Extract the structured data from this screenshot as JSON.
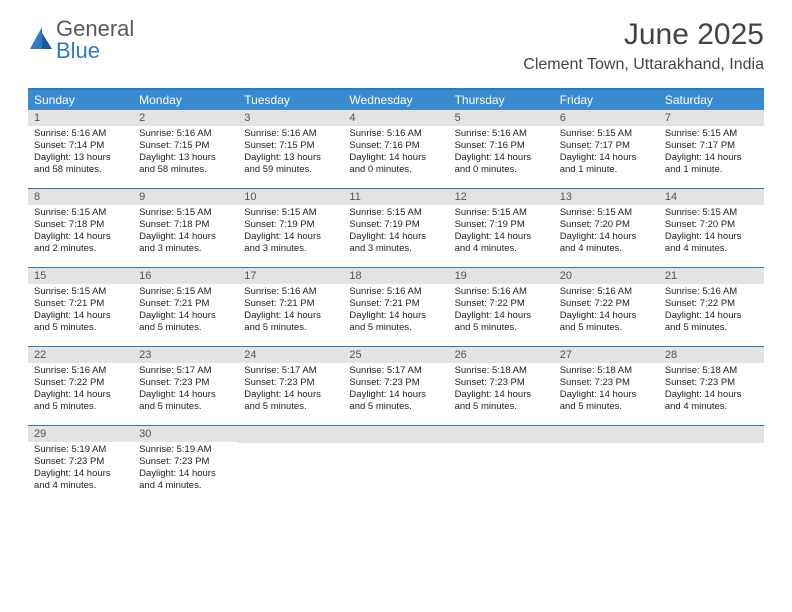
{
  "brand": {
    "part1": "General",
    "part2": "Blue"
  },
  "title": "June 2025",
  "location": "Clement Town, Uttarakhand, India",
  "colors": {
    "header_bg": "#3a8ad0",
    "border": "#2f79c2",
    "daynum_bg": "#e3e3e3",
    "text": "#222222"
  },
  "day_names": [
    "Sunday",
    "Monday",
    "Tuesday",
    "Wednesday",
    "Thursday",
    "Friday",
    "Saturday"
  ],
  "weeks": [
    [
      {
        "n": "1",
        "sr": "5:16 AM",
        "ss": "7:14 PM",
        "dl": "13 hours and 58 minutes."
      },
      {
        "n": "2",
        "sr": "5:16 AM",
        "ss": "7:15 PM",
        "dl": "13 hours and 58 minutes."
      },
      {
        "n": "3",
        "sr": "5:16 AM",
        "ss": "7:15 PM",
        "dl": "13 hours and 59 minutes."
      },
      {
        "n": "4",
        "sr": "5:16 AM",
        "ss": "7:16 PM",
        "dl": "14 hours and 0 minutes."
      },
      {
        "n": "5",
        "sr": "5:16 AM",
        "ss": "7:16 PM",
        "dl": "14 hours and 0 minutes."
      },
      {
        "n": "6",
        "sr": "5:15 AM",
        "ss": "7:17 PM",
        "dl": "14 hours and 1 minute."
      },
      {
        "n": "7",
        "sr": "5:15 AM",
        "ss": "7:17 PM",
        "dl": "14 hours and 1 minute."
      }
    ],
    [
      {
        "n": "8",
        "sr": "5:15 AM",
        "ss": "7:18 PM",
        "dl": "14 hours and 2 minutes."
      },
      {
        "n": "9",
        "sr": "5:15 AM",
        "ss": "7:18 PM",
        "dl": "14 hours and 3 minutes."
      },
      {
        "n": "10",
        "sr": "5:15 AM",
        "ss": "7:19 PM",
        "dl": "14 hours and 3 minutes."
      },
      {
        "n": "11",
        "sr": "5:15 AM",
        "ss": "7:19 PM",
        "dl": "14 hours and 3 minutes."
      },
      {
        "n": "12",
        "sr": "5:15 AM",
        "ss": "7:19 PM",
        "dl": "14 hours and 4 minutes."
      },
      {
        "n": "13",
        "sr": "5:15 AM",
        "ss": "7:20 PM",
        "dl": "14 hours and 4 minutes."
      },
      {
        "n": "14",
        "sr": "5:15 AM",
        "ss": "7:20 PM",
        "dl": "14 hours and 4 minutes."
      }
    ],
    [
      {
        "n": "15",
        "sr": "5:15 AM",
        "ss": "7:21 PM",
        "dl": "14 hours and 5 minutes."
      },
      {
        "n": "16",
        "sr": "5:15 AM",
        "ss": "7:21 PM",
        "dl": "14 hours and 5 minutes."
      },
      {
        "n": "17",
        "sr": "5:16 AM",
        "ss": "7:21 PM",
        "dl": "14 hours and 5 minutes."
      },
      {
        "n": "18",
        "sr": "5:16 AM",
        "ss": "7:21 PM",
        "dl": "14 hours and 5 minutes."
      },
      {
        "n": "19",
        "sr": "5:16 AM",
        "ss": "7:22 PM",
        "dl": "14 hours and 5 minutes."
      },
      {
        "n": "20",
        "sr": "5:16 AM",
        "ss": "7:22 PM",
        "dl": "14 hours and 5 minutes."
      },
      {
        "n": "21",
        "sr": "5:16 AM",
        "ss": "7:22 PM",
        "dl": "14 hours and 5 minutes."
      }
    ],
    [
      {
        "n": "22",
        "sr": "5:16 AM",
        "ss": "7:22 PM",
        "dl": "14 hours and 5 minutes."
      },
      {
        "n": "23",
        "sr": "5:17 AM",
        "ss": "7:23 PM",
        "dl": "14 hours and 5 minutes."
      },
      {
        "n": "24",
        "sr": "5:17 AM",
        "ss": "7:23 PM",
        "dl": "14 hours and 5 minutes."
      },
      {
        "n": "25",
        "sr": "5:17 AM",
        "ss": "7:23 PM",
        "dl": "14 hours and 5 minutes."
      },
      {
        "n": "26",
        "sr": "5:18 AM",
        "ss": "7:23 PM",
        "dl": "14 hours and 5 minutes."
      },
      {
        "n": "27",
        "sr": "5:18 AM",
        "ss": "7:23 PM",
        "dl": "14 hours and 5 minutes."
      },
      {
        "n": "28",
        "sr": "5:18 AM",
        "ss": "7:23 PM",
        "dl": "14 hours and 4 minutes."
      }
    ],
    [
      {
        "n": "29",
        "sr": "5:19 AM",
        "ss": "7:23 PM",
        "dl": "14 hours and 4 minutes."
      },
      {
        "n": "30",
        "sr": "5:19 AM",
        "ss": "7:23 PM",
        "dl": "14 hours and 4 minutes."
      },
      null,
      null,
      null,
      null,
      null
    ]
  ],
  "labels": {
    "sunrise": "Sunrise:",
    "sunset": "Sunset:",
    "daylight": "Daylight:"
  }
}
